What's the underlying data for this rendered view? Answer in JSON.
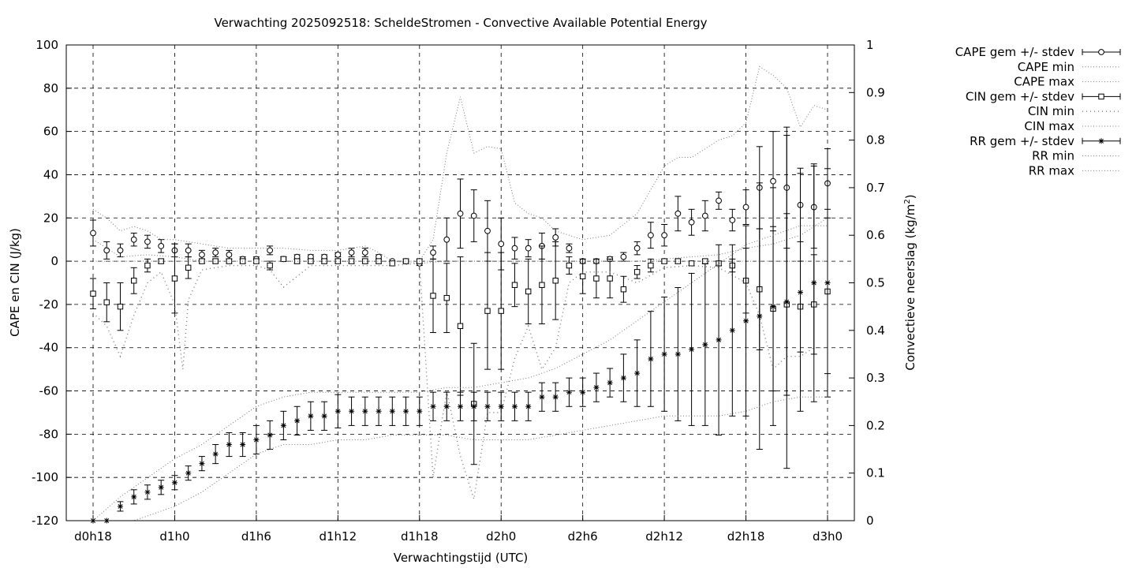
{
  "chart_data": {
    "type": "scatter",
    "title": "Verwachting 2025092518: ScheldeStromen - Convective Available Potential Energy",
    "xlabel": "Verwachtingstijd (UTC)",
    "ylabel": "CAPE en CIN (J/kg)",
    "y2label": "Convectieve neerslag (kg/m",
    "y2label_sup": "2",
    "y2label_end": ")",
    "xlim": [
      0,
      54
    ],
    "ylim": [
      -120,
      100
    ],
    "y2lim": [
      0,
      1
    ],
    "x_ticks": [
      {
        "x": 0,
        "label": "d0h18"
      },
      {
        "x": 6,
        "label": "d1h0"
      },
      {
        "x": 12,
        "label": "d1h6"
      },
      {
        "x": 18,
        "label": "d1h12"
      },
      {
        "x": 24,
        "label": "d1h18"
      },
      {
        "x": 30,
        "label": "d2h0"
      },
      {
        "x": 36,
        "label": "d2h6"
      },
      {
        "x": 42,
        "label": "d2h12"
      },
      {
        "x": 48,
        "label": "d2h18"
      },
      {
        "x": 54,
        "label": "d3h0"
      }
    ],
    "y_ticks": [
      100,
      80,
      60,
      40,
      20,
      0,
      -20,
      -40,
      -60,
      -80,
      -100,
      -120
    ],
    "y2_ticks": [
      {
        "v": 1,
        "label": "1"
      },
      {
        "v": 0.9,
        "label": "0.9"
      },
      {
        "v": 0.8,
        "label": "0.8"
      },
      {
        "v": 0.7,
        "label": "0.7"
      },
      {
        "v": 0.6,
        "label": "0.6"
      },
      {
        "v": 0.5,
        "label": "0.5"
      },
      {
        "v": 0.4,
        "label": "0.4"
      },
      {
        "v": 0.3,
        "label": "0.3"
      },
      {
        "v": 0.2,
        "label": "0.2"
      },
      {
        "v": 0.1,
        "label": "0.1"
      },
      {
        "v": 0,
        "label": "0"
      }
    ],
    "grid": true,
    "legend_position": "top-right, outside plot",
    "legend": [
      {
        "label": "CAPE gem +/- stdev",
        "style": "errorbar-circle"
      },
      {
        "label": "CAPE min",
        "style": "dotted"
      },
      {
        "label": "CAPE max",
        "style": "dotted"
      },
      {
        "label": "CIN gem +/- stdev",
        "style": "errorbar-square"
      },
      {
        "label": "CIN min",
        "style": "dotted-sparse"
      },
      {
        "label": "CIN max",
        "style": "dotted"
      },
      {
        "label": "RR gem +/- stdev",
        "style": "errorbar-star"
      },
      {
        "label": "RR min",
        "style": "dotted"
      },
      {
        "label": "RR max",
        "style": "dotted"
      }
    ],
    "series": [
      {
        "name": "CAPE gem +/- stdev",
        "axis": "y",
        "marker": "circle",
        "x": [
          0,
          1,
          2,
          3,
          4,
          5,
          6,
          7,
          8,
          9,
          10,
          11,
          12,
          13,
          14,
          15,
          16,
          17,
          18,
          19,
          20,
          21,
          22,
          23,
          24,
          25,
          26,
          27,
          28,
          29,
          30,
          31,
          32,
          33,
          34,
          35,
          36,
          37,
          38,
          39,
          40,
          41,
          42,
          43,
          44,
          45,
          46,
          47,
          48,
          49,
          50,
          51,
          52,
          53,
          54
        ],
        "y": [
          13,
          5,
          5,
          10,
          9,
          7,
          5,
          5,
          3,
          4,
          3,
          1,
          1,
          5,
          1,
          2,
          2,
          2,
          3,
          4,
          4,
          2,
          0,
          0,
          -1,
          4,
          10,
          22,
          21,
          14,
          8,
          6,
          6,
          7,
          11,
          6,
          0,
          0,
          1,
          2,
          6,
          12,
          12,
          22,
          18,
          21,
          28,
          19,
          25,
          34,
          37,
          34,
          26,
          25,
          36
        ],
        "err": [
          6,
          4,
          3,
          3,
          3,
          3,
          3,
          3,
          2,
          2,
          2,
          1,
          1,
          2,
          1,
          1,
          1,
          1,
          1,
          2,
          2,
          1,
          0,
          0,
          1,
          3,
          10,
          16,
          12,
          14,
          12,
          5,
          4,
          6,
          4,
          2,
          1,
          1,
          1,
          2,
          3,
          6,
          5,
          8,
          6,
          7,
          4,
          5,
          8,
          19,
          23,
          28,
          17,
          19,
          16
        ]
      },
      {
        "name": "CAPE min",
        "axis": "y",
        "x": [
          0,
          2,
          4,
          6,
          8,
          10,
          12,
          14,
          16,
          18,
          20,
          22,
          24,
          26,
          28,
          30,
          32,
          34,
          36,
          38,
          40,
          42,
          44,
          46,
          48,
          50,
          52,
          54
        ],
        "y": [
          10,
          2,
          3,
          2,
          0,
          0,
          0,
          0,
          0,
          0,
          0,
          0,
          -1,
          0,
          0,
          0,
          0,
          0,
          0,
          0,
          0,
          1,
          2,
          3,
          6,
          8,
          12,
          20
        ]
      },
      {
        "name": "CAPE max",
        "axis": "y",
        "x": [
          0,
          1,
          2,
          3,
          4,
          5,
          6,
          8,
          10,
          12,
          14,
          16,
          18,
          19,
          20,
          21,
          22,
          24,
          25,
          26,
          27,
          28,
          29,
          30,
          31,
          32,
          33,
          34,
          35,
          36,
          38,
          40,
          42,
          43,
          44,
          46,
          47,
          48,
          49,
          50,
          51,
          52,
          53,
          54
        ],
        "y": [
          24,
          20,
          14,
          16,
          14,
          10,
          10,
          8,
          6,
          6,
          6,
          5,
          5,
          6,
          7,
          4,
          0,
          0,
          10,
          50,
          76,
          50,
          53,
          52,
          27,
          22,
          20,
          14,
          12,
          10,
          12,
          22,
          44,
          48,
          48,
          56,
          58,
          64,
          90,
          86,
          80,
          62,
          72,
          70
        ]
      },
      {
        "name": "CIN gem +/- stdev",
        "axis": "y",
        "marker": "square",
        "x": [
          0,
          1,
          2,
          3,
          4,
          5,
          6,
          7,
          8,
          9,
          10,
          11,
          12,
          13,
          14,
          15,
          16,
          17,
          18,
          19,
          20,
          21,
          22,
          23,
          24,
          25,
          26,
          27,
          28,
          29,
          30,
          31,
          32,
          33,
          34,
          35,
          36,
          37,
          38,
          39,
          40,
          41,
          42,
          43,
          44,
          45,
          46,
          47,
          48,
          49,
          50,
          51,
          52,
          53,
          54
        ],
        "y": [
          -15,
          -19,
          -21,
          -9,
          -2,
          0,
          -8,
          -3,
          0,
          0,
          0,
          0,
          0,
          -2,
          1,
          0,
          0,
          0,
          0,
          0,
          0,
          0,
          -1,
          0,
          0,
          -16,
          -17,
          -30,
          -66,
          -23,
          -23,
          -11,
          -14,
          -11,
          -9,
          -2,
          -7,
          -8,
          -8,
          -13,
          -5,
          -2,
          0,
          0,
          -1,
          0,
          -1,
          -2,
          -9,
          -13,
          -22,
          -20,
          -21,
          -20,
          -14
        ],
        "err": [
          7,
          9,
          11,
          6,
          3,
          1,
          16,
          5,
          1,
          1,
          1,
          1,
          1,
          2,
          1,
          1,
          1,
          1,
          1,
          1,
          1,
          1,
          1,
          1,
          1,
          17,
          16,
          32,
          28,
          27,
          27,
          10,
          15,
          18,
          18,
          4,
          8,
          9,
          9,
          6,
          3,
          3,
          1,
          1,
          1,
          1,
          1,
          3,
          15,
          28,
          38,
          42,
          21,
          23,
          38
        ]
      },
      {
        "name": "CIN min",
        "axis": "y",
        "x": [
          0,
          1,
          2,
          3,
          4,
          5,
          6,
          6.6,
          7,
          8,
          10,
          12,
          13,
          14,
          16,
          18,
          20,
          22,
          24,
          25,
          26,
          27,
          28,
          29,
          30,
          31,
          32,
          33,
          34,
          35,
          36,
          38,
          40,
          42,
          44,
          46,
          48,
          49,
          50,
          51,
          52,
          53,
          54
        ],
        "y": [
          -24,
          -30,
          -44,
          -25,
          -10,
          -5,
          -20,
          -50,
          -18,
          -4,
          -2,
          -2,
          -4,
          -12,
          -2,
          -2,
          -2,
          -2,
          -1,
          -100,
          -60,
          -90,
          -110,
          -70,
          -70,
          -45,
          -30,
          -50,
          -40,
          -10,
          -5,
          -5,
          -10,
          -3,
          -2,
          -3,
          -10,
          -25,
          -50,
          -44,
          -44,
          -40,
          -40
        ]
      },
      {
        "name": "CIN max",
        "axis": "y",
        "x": [
          0,
          2,
          4,
          6,
          8,
          10,
          12,
          14,
          16,
          18,
          20,
          22,
          24,
          26,
          28,
          30,
          32,
          34,
          36,
          38,
          40,
          42,
          44,
          46,
          48,
          50,
          52,
          54
        ],
        "y": [
          0,
          0,
          0,
          0,
          0,
          0,
          0,
          0,
          0,
          0,
          0,
          0,
          0,
          0,
          0,
          0,
          0,
          0,
          0,
          0,
          0,
          0,
          0,
          0,
          0,
          0,
          0,
          0
        ]
      },
      {
        "name": "RR gem +/- stdev",
        "axis": "y2",
        "marker": "star",
        "x": [
          0,
          1,
          2,
          3,
          4,
          5,
          6,
          7,
          8,
          9,
          10,
          11,
          12,
          13,
          14,
          15,
          16,
          17,
          18,
          19,
          20,
          21,
          22,
          23,
          24,
          25,
          26,
          27,
          28,
          29,
          30,
          31,
          32,
          33,
          34,
          35,
          36,
          37,
          38,
          39,
          40,
          41,
          42,
          43,
          44,
          45,
          46,
          47,
          48,
          49,
          50,
          51,
          52,
          53,
          54
        ],
        "y": [
          0.0,
          0.0,
          0.03,
          0.05,
          0.06,
          0.07,
          0.08,
          0.1,
          0.12,
          0.14,
          0.16,
          0.16,
          0.17,
          0.18,
          0.2,
          0.21,
          0.22,
          0.22,
          0.23,
          0.23,
          0.23,
          0.23,
          0.23,
          0.23,
          0.23,
          0.24,
          0.24,
          0.24,
          0.24,
          0.24,
          0.24,
          0.24,
          0.24,
          0.26,
          0.26,
          0.27,
          0.27,
          0.28,
          0.29,
          0.3,
          0.31,
          0.34,
          0.35,
          0.35,
          0.36,
          0.37,
          0.38,
          0.4,
          0.42,
          0.43,
          0.45,
          0.46,
          0.48,
          0.5,
          0.5
        ],
        "err": [
          0,
          0,
          0.01,
          0.015,
          0.015,
          0.015,
          0.015,
          0.015,
          0.015,
          0.02,
          0.025,
          0.025,
          0.03,
          0.03,
          0.03,
          0.03,
          0.03,
          0.03,
          0.035,
          0.03,
          0.03,
          0.03,
          0.03,
          0.03,
          0.03,
          0.03,
          0.03,
          0.03,
          0.03,
          0.03,
          0.03,
          0.03,
          0.03,
          0.03,
          0.03,
          0.03,
          0.03,
          0.03,
          0.03,
          0.05,
          0.07,
          0.1,
          0.12,
          0.14,
          0.16,
          0.17,
          0.2,
          0.18,
          0.2,
          0.28,
          0.25,
          0.35,
          0.25,
          0.25,
          0.24
        ]
      },
      {
        "name": "RR min",
        "axis": "y2",
        "x": [
          0,
          3,
          6,
          8,
          10,
          12,
          14,
          16,
          18,
          20,
          22,
          24,
          26,
          28,
          30,
          32,
          34,
          36,
          38,
          40,
          42,
          44,
          46,
          48,
          50,
          52,
          54
        ],
        "y": [
          0,
          0,
          0.03,
          0.06,
          0.1,
          0.14,
          0.16,
          0.16,
          0.17,
          0.17,
          0.18,
          0.18,
          0.18,
          0.17,
          0.17,
          0.17,
          0.18,
          0.19,
          0.2,
          0.21,
          0.22,
          0.22,
          0.22,
          0.23,
          0.25,
          0.26,
          0.26
        ]
      },
      {
        "name": "RR max",
        "axis": "y2",
        "x": [
          0,
          2,
          4,
          6,
          8,
          10,
          12,
          14,
          16,
          18,
          20,
          22,
          24,
          26,
          28,
          30,
          32,
          34,
          36,
          38,
          40,
          42,
          44,
          46,
          48,
          50,
          52,
          54
        ],
        "y": [
          0,
          0.05,
          0.09,
          0.13,
          0.16,
          0.2,
          0.24,
          0.26,
          0.27,
          0.27,
          0.27,
          0.27,
          0.27,
          0.28,
          0.28,
          0.29,
          0.3,
          0.32,
          0.35,
          0.38,
          0.42,
          0.46,
          0.5,
          0.54,
          0.58,
          0.6,
          0.62,
          0.62
        ]
      }
    ]
  }
}
